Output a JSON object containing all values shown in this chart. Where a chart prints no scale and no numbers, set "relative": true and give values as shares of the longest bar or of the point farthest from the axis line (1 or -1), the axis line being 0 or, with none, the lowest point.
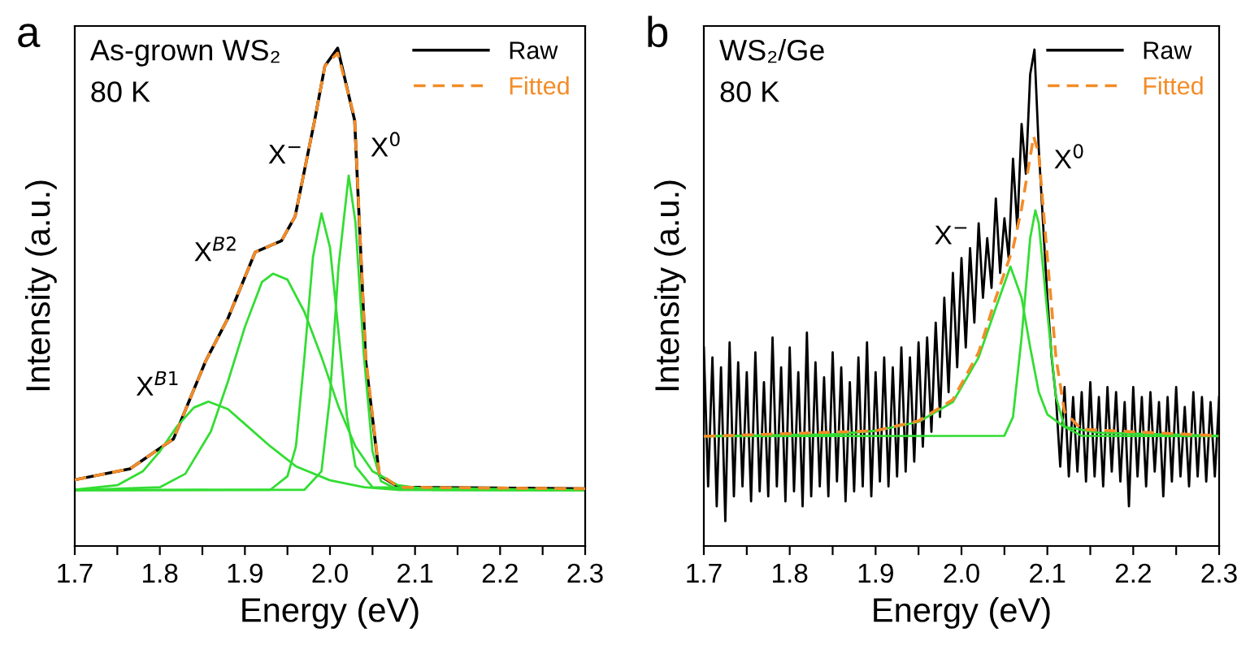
{
  "chart_data": [
    {
      "type": "line",
      "title": "As-grown WS₂",
      "subtitle": "80 K",
      "xlabel": "Energy (eV)",
      "ylabel": "Intensity (a.u.)",
      "relative": true,
      "legend": "top right",
      "grid": false,
      "xlim": [
        1.7,
        2.3
      ],
      "xticks": [
        1.7,
        {
          "value": 1.75,
          "label": null
        },
        1.8,
        {
          "value": 1.85,
          "label": null
        },
        1.9,
        {
          "value": 1.95,
          "label": null
        },
        "2.0",
        {
          "value": 2.05,
          "label": null
        },
        2.1,
        {
          "value": 2.15,
          "label": null
        },
        2.2,
        {
          "value": 2.25,
          "label": null
        },
        2.3
      ],
      "annotations": [
        "a",
        {
          "text": "X$^{B1}$",
          "x": 1.857,
          "y": 0.29
        },
        {
          "text": "X$^{B2}$",
          "x": 1.933,
          "y": 0.547
        },
        {
          "text": "X$^{−}$",
          "x": 1.99,
          "y": 0.668
        },
        {
          "text": "X$^{0}$",
          "x": 2.022,
          "y": 0.744
        }
      ],
      "series": [
        {
          "name": "Raw",
          "color": "#000000",
          "line_style": "solid",
          "x": [
            1.7,
            1.765,
            1.816,
            1.854,
            1.88,
            1.912,
            1.943,
            1.959,
            1.982,
            1.994,
            2.009,
            2.029,
            2.042,
            2.058,
            2.081,
            2.3
          ],
          "values": [
            0.133,
            0.155,
            0.215,
            0.372,
            0.457,
            0.59,
            0.613,
            0.662,
            0.855,
            0.964,
            1.0,
            0.855,
            0.372,
            0.142,
            0.118,
            0.115
          ]
        },
        {
          "name": "Fitted",
          "color": "#f28c28",
          "line_style": "dashed",
          "x": [
            1.7,
            1.765,
            1.816,
            1.854,
            1.88,
            1.912,
            1.943,
            1.959,
            1.982,
            1.994,
            2.009,
            2.029,
            2.042,
            2.058,
            2.081,
            2.3
          ],
          "values": [
            0.133,
            0.155,
            0.215,
            0.372,
            0.457,
            0.59,
            0.613,
            0.662,
            0.855,
            0.964,
            0.99,
            0.86,
            0.38,
            0.145,
            0.118,
            0.115
          ]
        },
        {
          "color": "#33dd33",
          "line_style": "solid",
          "x": [
            1.7,
            1.75,
            1.78,
            1.8,
            1.82,
            1.84,
            1.857,
            1.88,
            1.9,
            1.93,
            1.96,
            2.0,
            2.04,
            2.08,
            2.3
          ],
          "values": [
            0.113,
            0.122,
            0.15,
            0.19,
            0.24,
            0.278,
            0.29,
            0.275,
            0.245,
            0.2,
            0.16,
            0.132,
            0.118,
            0.113,
            0.112
          ]
        },
        {
          "color": "#33dd33",
          "line_style": "solid",
          "x": [
            1.7,
            1.8,
            1.83,
            1.86,
            1.88,
            1.9,
            1.92,
            1.933,
            1.95,
            1.97,
            1.99,
            2.01,
            2.03,
            2.05,
            2.08,
            2.12,
            2.3
          ],
          "values": [
            0.112,
            0.118,
            0.145,
            0.23,
            0.33,
            0.44,
            0.53,
            0.547,
            0.535,
            0.47,
            0.38,
            0.28,
            0.2,
            0.15,
            0.122,
            0.113,
            0.112
          ]
        },
        {
          "color": "#33dd33",
          "line_style": "solid",
          "x": [
            1.7,
            1.93,
            1.95,
            1.96,
            1.97,
            1.98,
            1.99,
            2.0,
            2.01,
            2.02,
            2.03,
            2.05,
            2.3
          ],
          "values": [
            0.112,
            0.113,
            0.14,
            0.2,
            0.38,
            0.58,
            0.668,
            0.6,
            0.43,
            0.26,
            0.16,
            0.118,
            0.112
          ]
        },
        {
          "color": "#33dd33",
          "line_style": "solid",
          "x": [
            1.7,
            1.97,
            1.99,
            2.0,
            2.01,
            2.022,
            2.03,
            2.04,
            2.05,
            2.06,
            2.08,
            2.3
          ],
          "values": [
            0.112,
            0.113,
            0.15,
            0.3,
            0.56,
            0.744,
            0.65,
            0.38,
            0.19,
            0.13,
            0.113,
            0.112
          ]
        }
      ]
    },
    {
      "type": "line",
      "title": "WS₂/Ge",
      "subtitle": "80 K",
      "xlabel": "Energy (eV)",
      "ylabel": "Intensity (a.u.)",
      "relative": true,
      "legend": "top right",
      "grid": false,
      "xlim": [
        1.7,
        2.3
      ],
      "xticks": [
        1.7,
        {
          "value": 1.75,
          "label": null
        },
        1.8,
        {
          "value": 1.85,
          "label": null
        },
        1.9,
        {
          "value": 1.95,
          "label": null
        },
        "2.0",
        {
          "value": 2.05,
          "label": null
        },
        2.1,
        {
          "value": 2.15,
          "label": null
        },
        2.2,
        {
          "value": 2.25,
          "label": null
        },
        2.3
      ],
      "annotations": [
        "b",
        {
          "text": "X$^{−}$",
          "x": 2.057,
          "y": 0.563
        },
        {
          "text": "X$^{0}$",
          "x": 2.086,
          "y": 0.676
        }
      ],
      "series": [
        {
          "name": "Raw",
          "color": "#000000",
          "line_style": "solid",
          "x": [
            1.7,
            1.705,
            1.71,
            1.715,
            1.72,
            1.725,
            1.73,
            1.735,
            1.74,
            1.745,
            1.75,
            1.755,
            1.76,
            1.765,
            1.77,
            1.775,
            1.78,
            1.785,
            1.79,
            1.795,
            1.8,
            1.805,
            1.81,
            1.815,
            1.82,
            1.825,
            1.83,
            1.835,
            1.84,
            1.845,
            1.85,
            1.855,
            1.86,
            1.865,
            1.87,
            1.875,
            1.88,
            1.885,
            1.89,
            1.895,
            1.9,
            1.905,
            1.91,
            1.915,
            1.92,
            1.925,
            1.93,
            1.935,
            1.94,
            1.945,
            1.95,
            1.955,
            1.96,
            1.965,
            1.97,
            1.975,
            1.98,
            1.985,
            1.99,
            1.995,
            2.0,
            2.005,
            2.01,
            2.015,
            2.02,
            2.025,
            2.03,
            2.035,
            2.04,
            2.045,
            2.05,
            2.055,
            2.06,
            2.065,
            2.07,
            2.075,
            2.08,
            2.085,
            2.09,
            2.095,
            2.1,
            2.105,
            2.11,
            2.115,
            2.12,
            2.125,
            2.13,
            2.135,
            2.14,
            2.145,
            2.15,
            2.155,
            2.16,
            2.165,
            2.17,
            2.175,
            2.18,
            2.185,
            2.19,
            2.195,
            2.2,
            2.205,
            2.21,
            2.215,
            2.22,
            2.225,
            2.23,
            2.235,
            2.24,
            2.245,
            2.25,
            2.255,
            2.26,
            2.265,
            2.27,
            2.275,
            2.28,
            2.285,
            2.29,
            2.295,
            2.3
          ],
          "values": [
            0.4,
            0.12,
            0.38,
            0.08,
            0.36,
            0.05,
            0.41,
            0.1,
            0.37,
            0.12,
            0.35,
            0.09,
            0.39,
            0.11,
            0.33,
            0.1,
            0.42,
            0.12,
            0.36,
            0.09,
            0.4,
            0.11,
            0.35,
            0.08,
            0.43,
            0.1,
            0.37,
            0.12,
            0.34,
            0.1,
            0.39,
            0.13,
            0.36,
            0.09,
            0.33,
            0.11,
            0.38,
            0.12,
            0.41,
            0.1,
            0.35,
            0.13,
            0.38,
            0.12,
            0.36,
            0.14,
            0.4,
            0.15,
            0.38,
            0.17,
            0.41,
            0.2,
            0.42,
            0.23,
            0.45,
            0.26,
            0.5,
            0.31,
            0.55,
            0.36,
            0.58,
            0.4,
            0.6,
            0.45,
            0.65,
            0.5,
            0.62,
            0.52,
            0.7,
            0.55,
            0.66,
            0.58,
            0.78,
            0.64,
            0.85,
            0.75,
            0.95,
            1.0,
            0.8,
            0.65,
            0.5,
            0.38,
            0.3,
            0.16,
            0.32,
            0.14,
            0.3,
            0.15,
            0.31,
            0.13,
            0.33,
            0.14,
            0.3,
            0.12,
            0.32,
            0.15,
            0.31,
            0.13,
            0.29,
            0.08,
            0.32,
            0.14,
            0.3,
            0.12,
            0.31,
            0.15,
            0.29,
            0.1,
            0.3,
            0.13,
            0.32,
            0.14,
            0.28,
            0.12,
            0.31,
            0.14,
            0.3,
            0.13,
            0.29,
            0.14,
            0.3
          ]
        },
        {
          "name": "Fitted",
          "color": "#f28c28",
          "line_style": "dashed",
          "x": [
            1.7,
            1.9,
            1.95,
            1.99,
            2.02,
            2.04,
            2.06,
            2.07,
            2.084,
            2.09,
            2.1,
            2.11,
            2.12,
            2.14,
            2.3
          ],
          "values": [
            0.221,
            0.232,
            0.252,
            0.295,
            0.39,
            0.5,
            0.6,
            0.68,
            0.825,
            0.79,
            0.58,
            0.38,
            0.27,
            0.235,
            0.222
          ]
        },
        {
          "color": "#33dd33",
          "line_style": "solid",
          "x": [
            1.7,
            1.85,
            1.9,
            1.95,
            1.99,
            2.02,
            2.04,
            2.057,
            2.07,
            2.08,
            2.09,
            2.1,
            2.12,
            2.16,
            2.3
          ],
          "values": [
            0.221,
            0.225,
            0.232,
            0.25,
            0.29,
            0.38,
            0.48,
            0.563,
            0.5,
            0.4,
            0.31,
            0.265,
            0.24,
            0.228,
            0.222
          ]
        },
        {
          "color": "#33dd33",
          "line_style": "solid",
          "x": [
            1.7,
            2.05,
            2.06,
            2.07,
            2.08,
            2.086,
            2.09,
            2.1,
            2.11,
            2.12,
            2.14,
            2.3
          ],
          "values": [
            0.221,
            0.222,
            0.26,
            0.42,
            0.62,
            0.676,
            0.65,
            0.47,
            0.3,
            0.24,
            0.222,
            0.221
          ]
        }
      ]
    }
  ]
}
